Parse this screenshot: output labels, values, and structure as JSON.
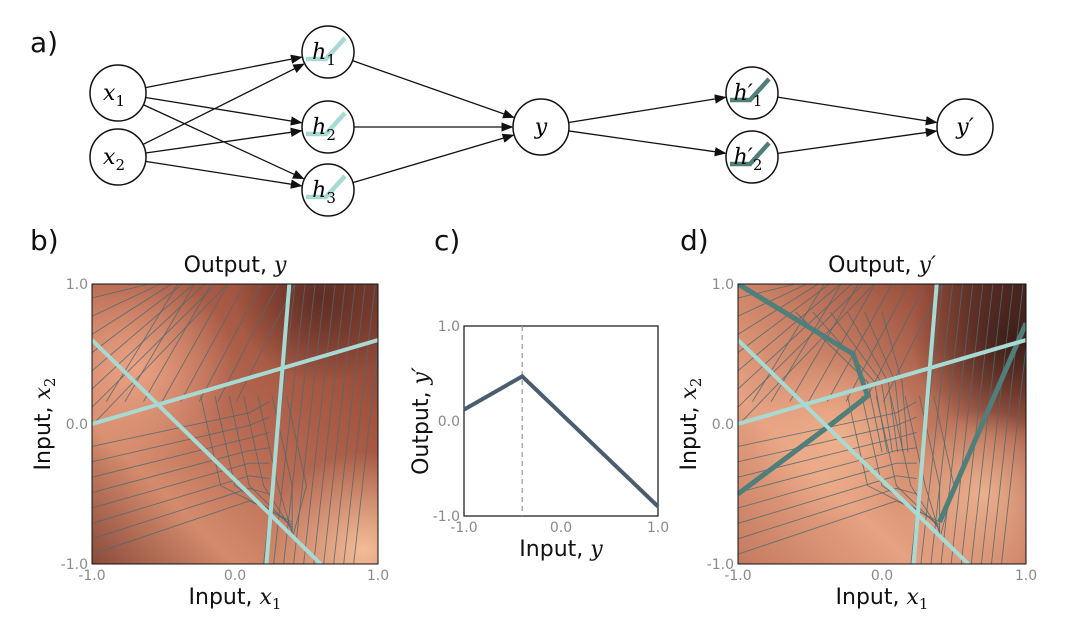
{
  "panels": {
    "a": {
      "label": "a)"
    },
    "b": {
      "label": "b)",
      "title": "Output, ",
      "title_var": "y",
      "xlabel": "Input, ",
      "xlabel_var": "x",
      "xlabel_sub": "1",
      "ylabel": "Input, ",
      "ylabel_var": "x",
      "ylabel_sub": "2"
    },
    "c": {
      "label": "c)",
      "xlabel": "Input, ",
      "xlabel_var": "y",
      "ylabel": "Output, ",
      "ylabel_var": "y′"
    },
    "d": {
      "label": "d)",
      "title": "Output, ",
      "title_var": "y′",
      "xlabel": "Input, ",
      "xlabel_var": "x",
      "xlabel_sub": "1",
      "ylabel": "Input, ",
      "ylabel_var": "x",
      "ylabel_sub": "2"
    }
  },
  "network": {
    "nodes": [
      {
        "id": "x1",
        "var": "x",
        "sub": "1",
        "activation": false
      },
      {
        "id": "x2",
        "var": "x",
        "sub": "2",
        "activation": false
      },
      {
        "id": "h1",
        "var": "h",
        "sub": "1",
        "activation": true
      },
      {
        "id": "h2",
        "var": "h",
        "sub": "2",
        "activation": true
      },
      {
        "id": "h3",
        "var": "h",
        "sub": "3",
        "activation": true
      },
      {
        "id": "y",
        "var": "y",
        "sub": "",
        "activation": false
      },
      {
        "id": "hp1",
        "var": "h′",
        "sub": "1",
        "activation": true
      },
      {
        "id": "hp2",
        "var": "h′",
        "sub": "2",
        "activation": true
      },
      {
        "id": "yp",
        "var": "y′",
        "sub": "",
        "activation": false
      }
    ],
    "edges": [
      [
        "x1",
        "h1"
      ],
      [
        "x1",
        "h2"
      ],
      [
        "x1",
        "h3"
      ],
      [
        "x2",
        "h1"
      ],
      [
        "x2",
        "h2"
      ],
      [
        "x2",
        "h3"
      ],
      [
        "h1",
        "y"
      ],
      [
        "h2",
        "y"
      ],
      [
        "h3",
        "y"
      ],
      [
        "y",
        "hp1"
      ],
      [
        "y",
        "hp2"
      ],
      [
        "hp1",
        "yp"
      ],
      [
        "hp2",
        "yp"
      ]
    ],
    "colors": {
      "relu_light": "#a8dad4",
      "relu_dark": "#4e7f7a"
    }
  },
  "chart_data": [
    {
      "panel": "b",
      "type": "heatmap",
      "xlim": [
        -1,
        1
      ],
      "ylim": [
        -1,
        1
      ],
      "xticks": [
        "-1.0",
        "0.0",
        "1.0"
      ],
      "yticks": [
        "-1.0",
        "0.0",
        "1.0"
      ],
      "joints": [
        {
          "name": "h1",
          "x": [
            -1.0,
            1.0
          ],
          "y": [
            0.0,
            0.6
          ]
        },
        {
          "name": "h2",
          "x": [
            -1.0,
            0.6
          ],
          "y": [
            0.6,
            -1.0
          ]
        },
        {
          "name": "h3",
          "x": [
            0.22,
            0.38
          ],
          "y": [
            -1.0,
            1.0
          ]
        }
      ],
      "colors": {
        "dark": "#7a3b2e",
        "mid": "#b8674f",
        "light": "#f2b48f",
        "contour": "#4f6a70",
        "joint": "#a8dad4"
      }
    },
    {
      "panel": "c",
      "type": "line",
      "x": [
        -1.0,
        -0.4,
        1.0
      ],
      "y": [
        0.12,
        0.47,
        -0.9
      ],
      "xlim": [
        -1,
        1
      ],
      "ylim": [
        -1,
        1
      ],
      "xticks": [
        "-1.0",
        "0.0",
        "1.0"
      ],
      "yticks": [
        "-1.0",
        "0.0",
        "1.0"
      ],
      "dashed_x": -0.4,
      "colors": {
        "line": "#4a5d6e",
        "dash": "#999999"
      }
    },
    {
      "panel": "d",
      "type": "heatmap",
      "xlim": [
        -1,
        1
      ],
      "ylim": [
        -1,
        1
      ],
      "xticks": [
        "-1.0",
        "0.0",
        "1.0"
      ],
      "yticks": [
        "-1.0",
        "0.0",
        "1.0"
      ],
      "joints": [
        {
          "name": "h1",
          "x": [
            -1.0,
            1.0
          ],
          "y": [
            0.0,
            0.6
          ]
        },
        {
          "name": "h2",
          "x": [
            -1.0,
            0.6
          ],
          "y": [
            0.6,
            -1.0
          ]
        },
        {
          "name": "h3",
          "x": [
            0.22,
            0.38
          ],
          "y": [
            -1.0,
            1.0
          ]
        }
      ],
      "y_level_joints": [
        {
          "x": [
            -1.0,
            -0.2,
            -0.1,
            -0.35,
            -1.0
          ],
          "y": [
            1.0,
            0.5,
            0.2,
            0.0,
            -0.5
          ]
        },
        {
          "x": [
            0.4,
            1.0
          ],
          "y": [
            -0.7,
            0.72
          ]
        }
      ],
      "colors": {
        "dark": "#3f1f1a",
        "mid": "#b8674f",
        "light": "#f2b48f",
        "contour": "#4f6a70",
        "joint": "#a8dad4",
        "yjoint": "#4e7f7a"
      }
    }
  ]
}
